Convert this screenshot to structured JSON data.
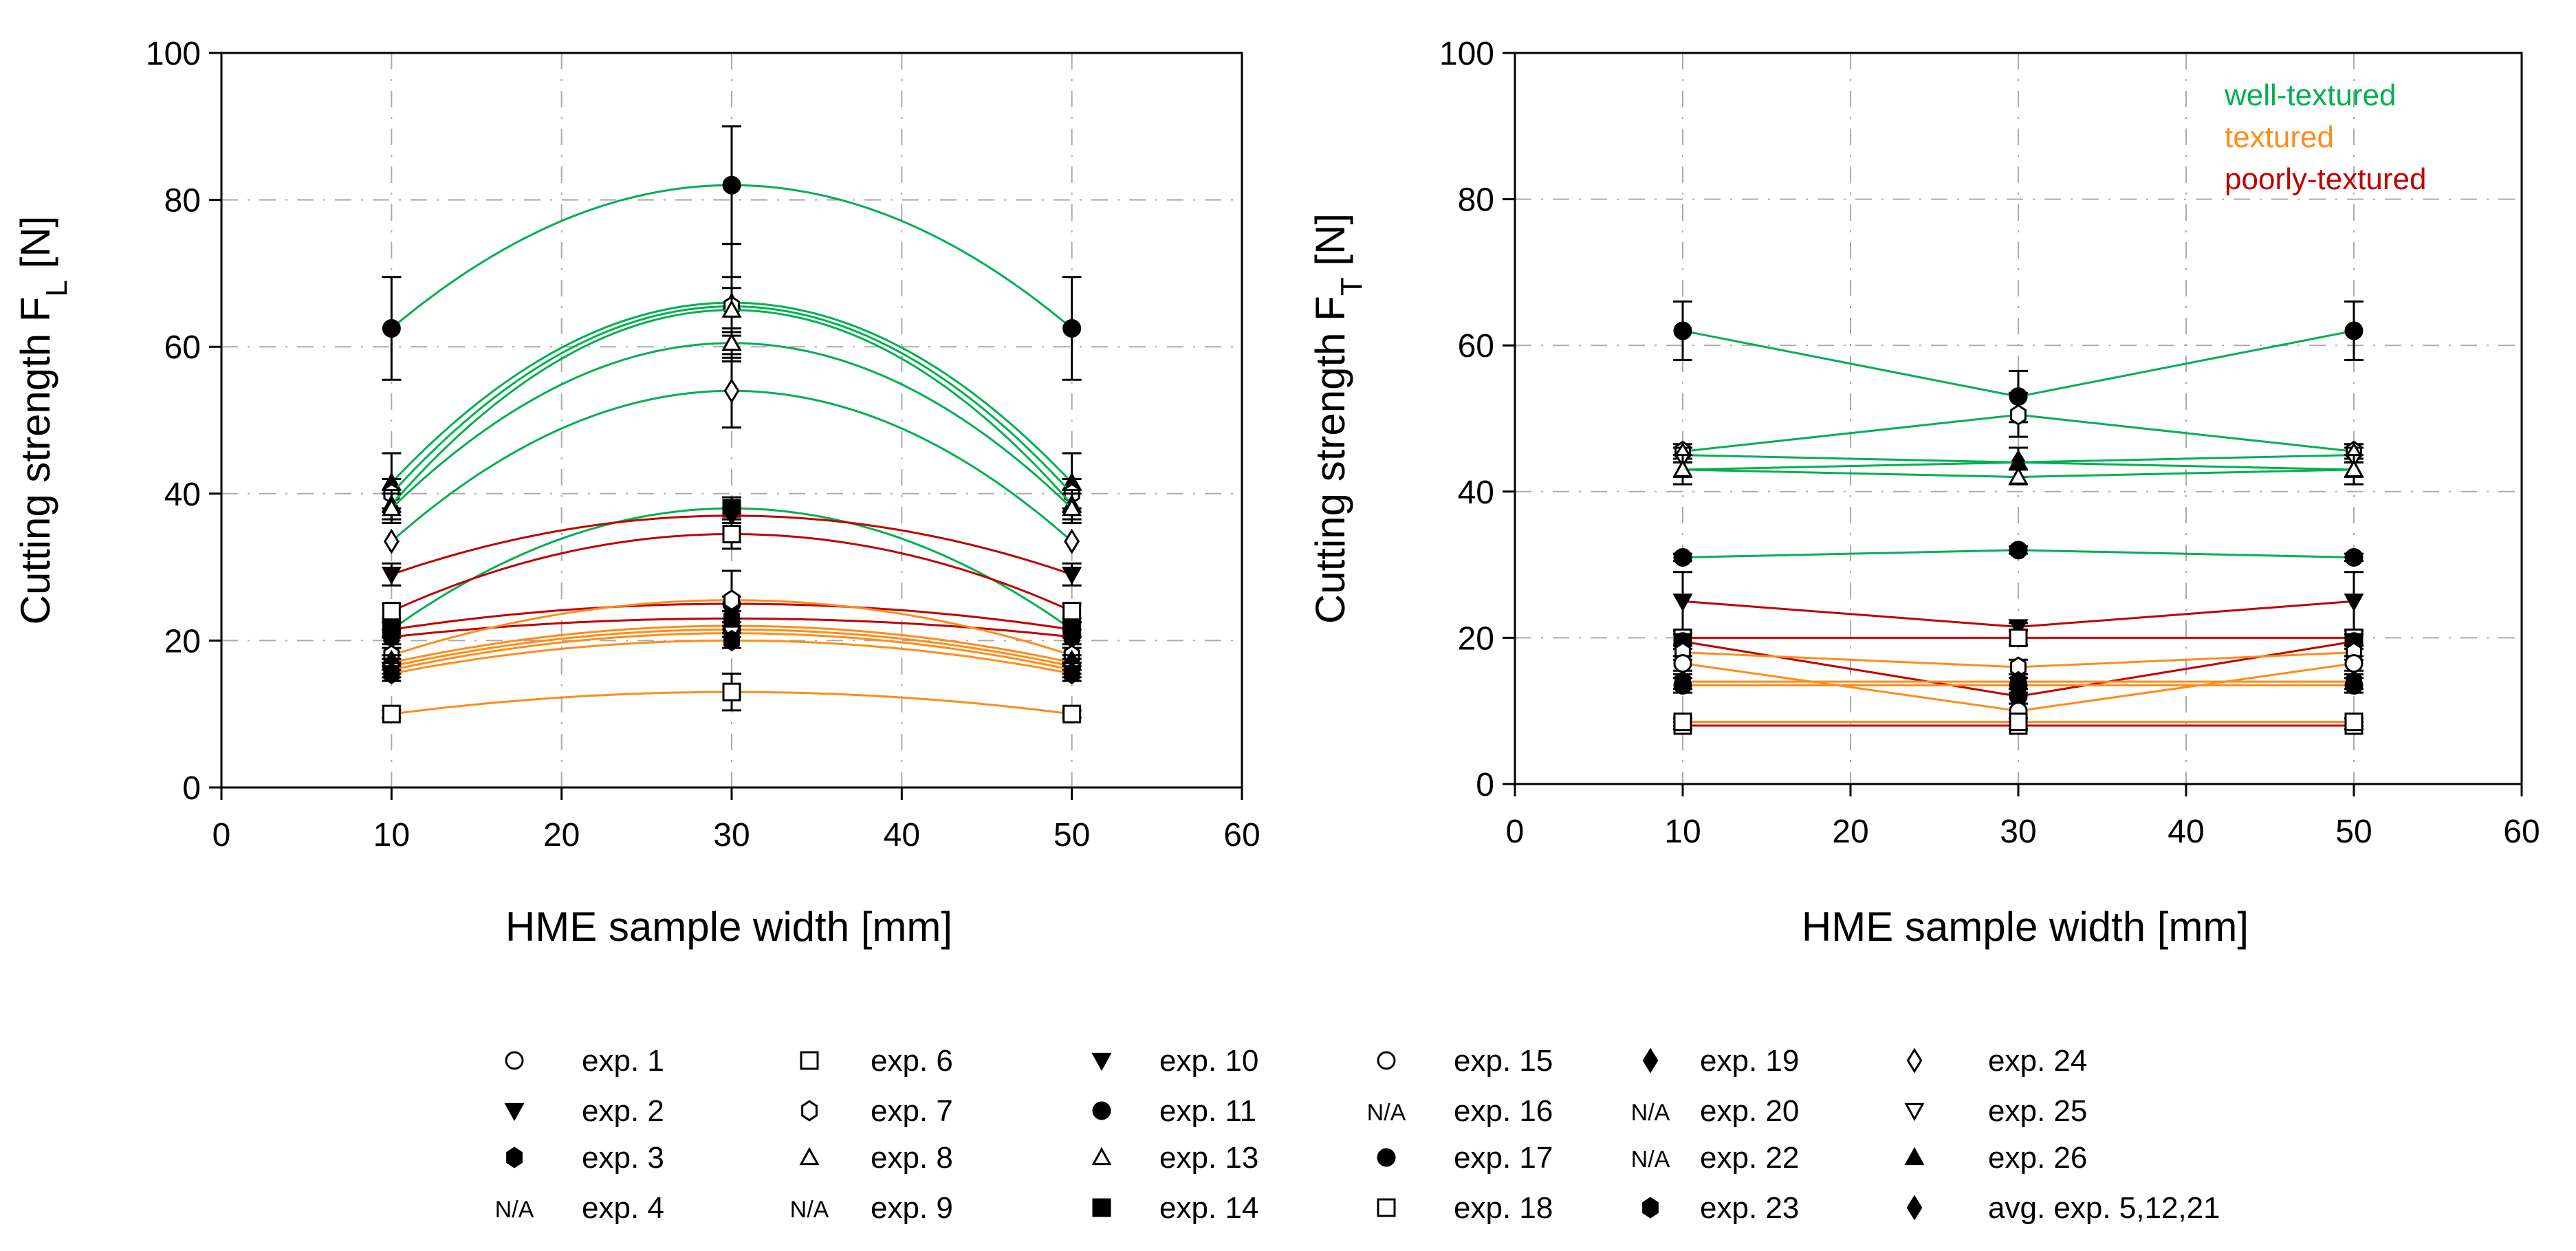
{
  "chart_data": [
    {
      "type": "line",
      "fit": "quadratic",
      "xlabel": "HME sample width [mm]",
      "ylabel": "Cutting strength F",
      "ylabel_sub": "L",
      "ylabel_unit": " [N]",
      "xlim": [
        0,
        60
      ],
      "ylim": [
        0,
        100
      ],
      "xticks": [
        "0",
        "10",
        "20",
        "30",
        "40",
        "50",
        "60"
      ],
      "yticks": [
        "0",
        "20",
        "40",
        "60",
        "80",
        "100"
      ],
      "grid": true,
      "x": [
        10,
        30,
        50
      ],
      "series": [
        {
          "class": "well-textured",
          "marker": "circle-filled",
          "values": [
            62.5,
            82,
            62.5
          ],
          "err": [
            7,
            8,
            7
          ]
        },
        {
          "class": "well-textured",
          "marker": "triangle-filled",
          "values": [
            41.5,
            66,
            41.5
          ],
          "err": [
            4,
            8,
            4
          ]
        },
        {
          "class": "well-textured",
          "marker": "hexagon-open",
          "values": [
            40,
            65.5,
            40
          ],
          "err": [
            2,
            4,
            2
          ]
        },
        {
          "class": "well-textured",
          "marker": "triangle-open",
          "values": [
            38.5,
            65,
            38.5
          ],
          "err": [
            2,
            3,
            2
          ]
        },
        {
          "class": "well-textured",
          "marker": "triangle-open",
          "values": [
            38,
            60.5,
            38
          ],
          "err": [
            2,
            2,
            2
          ]
        },
        {
          "class": "well-textured",
          "marker": "diamond-open",
          "values": [
            33.5,
            54,
            33.5
          ],
          "err": [
            0,
            5,
            0
          ]
        },
        {
          "class": "well-textured",
          "marker": "square-filled",
          "values": [
            21.5,
            38,
            21.5
          ],
          "err": [
            1,
            1.5,
            1
          ]
        },
        {
          "class": "poorly-textured",
          "marker": "triangle-down-filled",
          "values": [
            29,
            37,
            29
          ],
          "err": [
            1.5,
            1,
            1.5
          ]
        },
        {
          "class": "poorly-textured",
          "marker": "square-open",
          "values": [
            24,
            34.5,
            24
          ],
          "err": [
            1,
            2,
            1
          ]
        },
        {
          "class": "poorly-textured",
          "marker": "circle-filled",
          "values": [
            21.5,
            25,
            21.5
          ],
          "err": [
            1,
            1,
            1
          ]
        },
        {
          "class": "poorly-textured",
          "marker": "hexagon-filled",
          "values": [
            20.5,
            23,
            20.5
          ],
          "err": [
            1,
            1,
            1
          ]
        },
        {
          "class": "textured",
          "marker": "hexagon-open",
          "values": [
            18,
            25.5,
            18
          ],
          "err": [
            1,
            4,
            1
          ]
        },
        {
          "class": "textured",
          "marker": "diamond-filled",
          "values": [
            17,
            22,
            17
          ],
          "err": [
            1,
            1,
            1
          ]
        },
        {
          "class": "textured",
          "marker": "circle-filled",
          "values": [
            16.5,
            21.5,
            16.5
          ],
          "err": [
            1,
            1,
            1
          ]
        },
        {
          "class": "textured",
          "marker": "triangle-down-open",
          "values": [
            16,
            21,
            16
          ],
          "err": [
            1,
            1,
            1
          ]
        },
        {
          "class": "textured",
          "marker": "hexagon-filled",
          "values": [
            15.5,
            20,
            15.5
          ],
          "err": [
            1,
            1,
            1
          ]
        },
        {
          "class": "textured",
          "marker": "square-open",
          "values": [
            10,
            13,
            10
          ],
          "err": [
            0.5,
            2.5,
            0.5
          ]
        }
      ]
    },
    {
      "type": "line",
      "xlabel": "HME sample width [mm]",
      "ylabel": "Cutting strength F",
      "ylabel_sub": "T",
      "ylabel_unit": " [N]",
      "xlim": [
        0,
        60
      ],
      "ylim": [
        0,
        100
      ],
      "xticks": [
        "0",
        "10",
        "20",
        "30",
        "40",
        "50",
        "60"
      ],
      "yticks": [
        "0",
        "20",
        "40",
        "60",
        "80",
        "100"
      ],
      "grid": true,
      "legend_classes": [
        {
          "label": "well-textured",
          "color": "#00b050"
        },
        {
          "label": "textured",
          "color": "#ff8c1a"
        },
        {
          "label": "poorly-textured",
          "color": "#c00000"
        }
      ],
      "x": [
        10,
        30,
        50
      ],
      "series": [
        {
          "class": "well-textured",
          "marker": "circle-filled",
          "values": [
            62,
            53,
            62
          ],
          "err": [
            4,
            3.5,
            4
          ]
        },
        {
          "class": "well-textured",
          "marker": "hexagon-open",
          "values": [
            45.5,
            50.5,
            45.5
          ],
          "err": [
            1,
            3,
            1
          ]
        },
        {
          "class": "well-textured",
          "marker": "diamond-open",
          "values": [
            45,
            44,
            45
          ],
          "err": [
            1,
            2,
            1
          ]
        },
        {
          "class": "well-textured",
          "marker": "triangle-filled",
          "values": [
            43,
            44,
            43
          ],
          "err": [
            2,
            2,
            2
          ]
        },
        {
          "class": "well-textured",
          "marker": "triangle-open",
          "values": [
            43,
            42,
            43
          ],
          "err": [
            1,
            1,
            1
          ]
        },
        {
          "class": "well-textured",
          "marker": "circle-filled",
          "values": [
            31,
            32,
            31
          ],
          "err": [
            0.5,
            0.5,
            0.5
          ]
        },
        {
          "class": "poorly-textured",
          "marker": "triangle-down-filled",
          "values": [
            25,
            21.5,
            25
          ],
          "err": [
            4,
            0.5,
            4
          ]
        },
        {
          "class": "poorly-textured",
          "marker": "square-open",
          "values": [
            20,
            20,
            20
          ],
          "err": [
            1,
            1,
            1
          ]
        },
        {
          "class": "poorly-textured",
          "marker": "circle-filled",
          "values": [
            19.5,
            12,
            19.5
          ],
          "err": [
            1,
            1,
            1
          ]
        },
        {
          "class": "textured",
          "marker": "hexagon-open",
          "values": [
            18,
            16,
            18
          ],
          "err": [
            1,
            1,
            1
          ]
        },
        {
          "class": "textured",
          "marker": "circle-open",
          "values": [
            16.5,
            10,
            16.5
          ],
          "err": [
            1,
            1,
            1
          ]
        },
        {
          "class": "textured",
          "marker": "hexagon-filled",
          "values": [
            14,
            14,
            14
          ],
          "err": [
            1,
            1,
            1
          ]
        },
        {
          "class": "textured",
          "marker": "circle-filled",
          "values": [
            13.5,
            13.5,
            13.5
          ],
          "err": [
            1,
            1,
            1
          ]
        },
        {
          "class": "poorly-textured",
          "marker": "square-open",
          "values": [
            8,
            8,
            8
          ],
          "err": [
            0.5,
            0.5,
            0.5
          ]
        },
        {
          "class": "textured",
          "marker": "square-open",
          "values": [
            8.5,
            8.5,
            8.5
          ],
          "err": [
            0.5,
            0.5,
            0.5
          ]
        }
      ]
    }
  ],
  "colors": {
    "well-textured": "#00b050",
    "textured": "#ff8c1a",
    "poorly-textured": "#c00000"
  },
  "legend": [
    {
      "marker": "circle-open",
      "label": "exp. 1"
    },
    {
      "marker": "triangle-down-filled",
      "label": "exp. 2"
    },
    {
      "marker": "hexagon-filled",
      "label": "exp. 3"
    },
    {
      "marker": "na",
      "label": "exp. 4",
      "na": "N/A"
    },
    {
      "marker": "square-open",
      "label": "exp. 6"
    },
    {
      "marker": "hexagon-open",
      "label": "exp. 7"
    },
    {
      "marker": "triangle-open",
      "label": "exp. 8"
    },
    {
      "marker": "na",
      "label": "exp. 9",
      "na": "N/A"
    },
    {
      "marker": "triangle-down-filled",
      "label": "exp. 10"
    },
    {
      "marker": "circle-filled",
      "label": "exp. 11"
    },
    {
      "marker": "triangle-open",
      "label": "exp. 13"
    },
    {
      "marker": "square-filled",
      "label": "exp. 14"
    },
    {
      "marker": "circle-open",
      "label": "exp. 15"
    },
    {
      "marker": "na",
      "label": "exp. 16",
      "na": "N/A"
    },
    {
      "marker": "circle-filled",
      "label": "exp. 17"
    },
    {
      "marker": "square-open",
      "label": "exp. 18"
    },
    {
      "marker": "diamond-filled",
      "label": "exp. 19"
    },
    {
      "marker": "na",
      "label": "exp. 20",
      "na": "N/A"
    },
    {
      "marker": "na",
      "label": "exp. 22",
      "na": "N/A"
    },
    {
      "marker": "hexagon-filled",
      "label": "exp. 23"
    },
    {
      "marker": "diamond-open",
      "label": "exp. 24"
    },
    {
      "marker": "triangle-down-open",
      "label": "exp. 25"
    },
    {
      "marker": "triangle-filled",
      "label": "exp. 26"
    },
    {
      "marker": "diamond-filled",
      "label": "avg. exp. 5,12,21"
    }
  ]
}
